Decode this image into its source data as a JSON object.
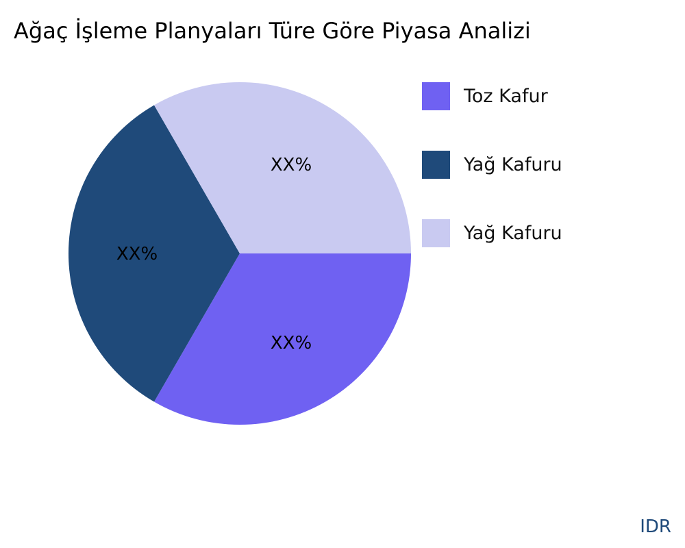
{
  "title": "Ağaç İşleme Planyaları Türe Göre Piyasa Analizi",
  "footer": "IDR",
  "chart_data": {
    "type": "pie",
    "title": "Ağaç İşleme Planyaları Türe Göre Piyasa Analizi",
    "legend_position": "right",
    "slices": [
      {
        "name": "Toz Kafur",
        "value": 33.33,
        "label": "XX%",
        "color": "#6f61f2"
      },
      {
        "name": "Yağ Kafuru",
        "value": 33.33,
        "label": "XX%",
        "color": "#1f4a7a"
      },
      {
        "name": "Yağ Kafuru",
        "value": 33.33,
        "label": "XX%",
        "color": "#c9caf1"
      }
    ]
  }
}
